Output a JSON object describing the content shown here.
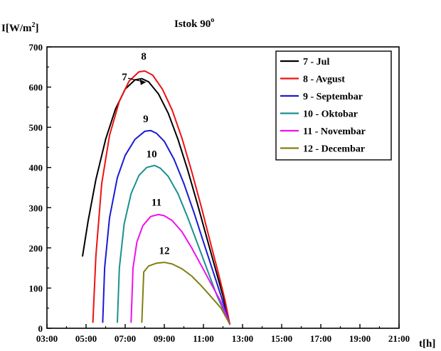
{
  "chart_data": {
    "type": "line",
    "title": "Istok 90",
    "title_superscript": "o",
    "ylabel_main": "I[W/m",
    "ylabel_sup": "2",
    "ylabel_end": "]",
    "xlabel": "t[h]",
    "xlim": [
      3,
      21
    ],
    "ylim": [
      0,
      700
    ],
    "x_ticks": [
      "03:00",
      "05:00",
      "07:00",
      "09:00",
      "11:00",
      "13:00",
      "15:00",
      "17:00",
      "19:00",
      "21:00"
    ],
    "y_ticks": [
      "0",
      "100",
      "200",
      "300",
      "400",
      "500",
      "600",
      "700"
    ],
    "legend_position": "top-right",
    "series": [
      {
        "name": "7 - Jul",
        "label": "7",
        "color": "#000000",
        "x": [
          4.82,
          5.1,
          5.5,
          6.0,
          6.5,
          7.0,
          7.5,
          7.85,
          8.2,
          8.7,
          9.2,
          9.7,
          10.2,
          10.7,
          11.2,
          11.6,
          12.0,
          12.35
        ],
        "y": [
          180,
          265,
          370,
          470,
          545,
          595,
          618,
          621,
          613,
          583,
          535,
          470,
          393,
          308,
          220,
          150,
          80,
          10
        ]
      },
      {
        "name": "8 - Avgust",
        "label": "8",
        "color": "#ee1111",
        "x": [
          5.35,
          5.5,
          5.8,
          6.2,
          6.7,
          7.2,
          7.7,
          8.0,
          8.4,
          8.9,
          9.4,
          9.9,
          10.4,
          10.9,
          11.4,
          11.8,
          12.1,
          12.35
        ],
        "y": [
          15,
          180,
          360,
          480,
          565,
          615,
          638,
          640,
          630,
          595,
          543,
          473,
          390,
          300,
          205,
          130,
          70,
          10
        ]
      },
      {
        "name": "9 - Septembar",
        "label": "9",
        "color": "#1a1ad6",
        "x": [
          5.85,
          5.95,
          6.2,
          6.6,
          7.0,
          7.5,
          8.0,
          8.3,
          8.6,
          9.0,
          9.5,
          10.0,
          10.5,
          11.0,
          11.5,
          11.9,
          12.35
        ],
        "y": [
          15,
          150,
          275,
          375,
          430,
          470,
          490,
          492,
          485,
          465,
          420,
          360,
          290,
          215,
          140,
          80,
          10
        ]
      },
      {
        "name": "10 - Oktobar",
        "label": "10",
        "color": "#1a9090",
        "x": [
          6.6,
          6.7,
          6.95,
          7.3,
          7.7,
          8.1,
          8.5,
          8.8,
          9.2,
          9.7,
          10.2,
          10.7,
          11.2,
          11.7,
          12.35
        ],
        "y": [
          15,
          150,
          260,
          335,
          380,
          400,
          405,
          398,
          378,
          335,
          275,
          210,
          145,
          80,
          10
        ]
      },
      {
        "name": "11 - Novembar",
        "label": "11",
        "color": "#ee11ee",
        "x": [
          7.3,
          7.4,
          7.6,
          7.9,
          8.3,
          8.7,
          9.0,
          9.4,
          9.9,
          10.4,
          10.9,
          11.4,
          11.9,
          12.35
        ],
        "y": [
          15,
          150,
          215,
          255,
          278,
          283,
          280,
          268,
          240,
          200,
          155,
          110,
          65,
          10
        ]
      },
      {
        "name": "12 - Decembar",
        "label": "12",
        "color": "#808010",
        "x": [
          7.85,
          7.95,
          8.2,
          8.6,
          9.0,
          9.4,
          9.9,
          10.4,
          10.9,
          11.4,
          11.9,
          12.35
        ],
        "y": [
          15,
          140,
          155,
          162,
          164,
          160,
          148,
          130,
          105,
          78,
          50,
          10
        ]
      }
    ]
  }
}
